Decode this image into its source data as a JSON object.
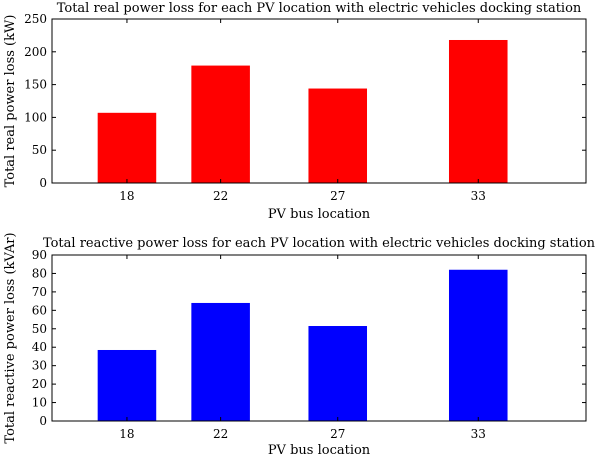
{
  "chart_data": [
    {
      "type": "bar",
      "title": "Total real power loss for each PV location with electric vehicles docking station",
      "xlabel": "PV bus location",
      "ylabel": "Total real power loss (kW)",
      "categories": [
        "18",
        "22",
        "27",
        "33"
      ],
      "x": [
        18,
        22,
        27,
        33
      ],
      "xlim": [
        14.8,
        37.6
      ],
      "values": [
        107,
        179,
        144,
        218
      ],
      "ylim": [
        0,
        250
      ],
      "yticks": [
        0,
        50,
        100,
        150,
        200,
        250
      ],
      "bar_color": "#ff0000",
      "grid": false
    },
    {
      "type": "bar",
      "title": "Total reactive power loss for each PV location with electric vehicles docking station",
      "xlabel": "PV bus location",
      "ylabel": "Total reactive power loss (kVAr)",
      "categories": [
        "18",
        "22",
        "27",
        "33"
      ],
      "x": [
        18,
        22,
        27,
        33
      ],
      "xlim": [
        14.8,
        37.6
      ],
      "values": [
        38.5,
        64,
        51.5,
        82
      ],
      "ylim": [
        0,
        90
      ],
      "yticks": [
        0,
        10,
        20,
        30,
        40,
        50,
        60,
        70,
        80,
        90
      ],
      "bar_color": "#0000ff",
      "grid": false
    }
  ]
}
